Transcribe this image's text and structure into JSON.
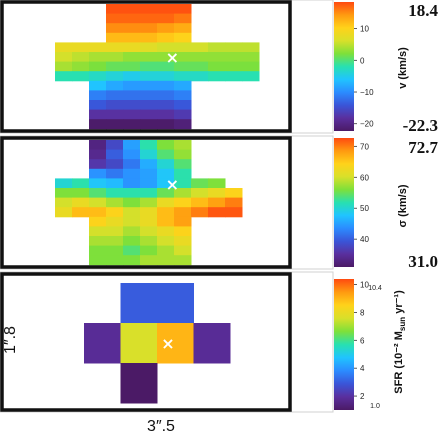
{
  "chart_data": [
    {
      "type": "heatmap",
      "quantity": "velocity",
      "colorbar_label": "v (km/s)",
      "colorbar_ticks": [
        "10",
        "0",
        "−10",
        "−20"
      ],
      "colorbar_tick_values": [
        10,
        0,
        -10,
        -20
      ],
      "vmax_label": "18.4",
      "vmin_label": "-22.3",
      "range": [
        -22.3,
        18.4
      ],
      "center_marker": "×",
      "rows": [
        [
          null,
          null,
          null,
          null,
          null,
          null,
          18,
          18,
          18,
          18,
          18,
          null,
          null,
          null,
          null,
          null,
          null
        ],
        [
          null,
          null,
          null,
          null,
          null,
          null,
          17,
          17,
          17,
          17,
          16,
          null,
          null,
          null,
          null,
          null,
          null
        ],
        [
          null,
          null,
          null,
          null,
          null,
          null,
          15,
          15,
          15,
          14,
          13,
          null,
          null,
          null,
          null,
          null,
          null
        ],
        [
          null,
          null,
          null,
          null,
          null,
          null,
          12,
          12,
          12,
          11,
          10,
          null,
          null,
          null,
          null,
          null,
          null
        ],
        [
          null,
          null,
          null,
          8,
          8,
          8,
          8,
          8,
          7,
          6,
          6,
          6,
          5,
          5,
          5,
          null,
          null
        ],
        [
          null,
          null,
          null,
          6,
          5,
          4,
          4,
          3,
          3,
          3,
          3,
          3,
          3,
          3,
          3,
          null,
          null
        ],
        [
          null,
          null,
          null,
          4,
          3,
          2,
          1,
          1,
          0,
          0,
          1,
          1,
          2,
          2,
          2,
          null,
          null
        ],
        [
          null,
          null,
          null,
          -2,
          -2,
          -3,
          -4,
          -5,
          -4,
          -4,
          -3,
          -3,
          -2,
          -2,
          -2,
          null,
          null
        ],
        [
          null,
          null,
          null,
          null,
          null,
          -6,
          -8,
          -9,
          -9,
          -9,
          -8,
          null,
          null,
          null,
          null,
          null,
          null
        ],
        [
          null,
          null,
          null,
          null,
          null,
          -11,
          -12,
          -12,
          -12,
          -12,
          -11,
          null,
          null,
          null,
          null,
          null,
          null
        ],
        [
          null,
          null,
          null,
          null,
          null,
          -14,
          -15,
          -15,
          -15,
          -15,
          -14,
          null,
          null,
          null,
          null,
          null,
          null
        ],
        [
          null,
          null,
          null,
          null,
          null,
          -18,
          -18,
          -18,
          -18,
          -18,
          -17,
          null,
          null,
          null,
          null,
          null,
          null
        ],
        [
          null,
          null,
          null,
          null,
          null,
          -22,
          -22,
          -22,
          -22,
          -22,
          -21,
          null,
          null,
          null,
          null,
          null,
          null
        ]
      ]
    },
    {
      "type": "heatmap",
      "quantity": "velocity dispersion",
      "colorbar_label": "σ (km/s)",
      "colorbar_ticks": [
        "70",
        "60",
        "50",
        "40"
      ],
      "colorbar_tick_values": [
        70,
        60,
        50,
        40
      ],
      "vmax_label": "72.7",
      "vmin_label": "31.0",
      "range": [
        31.0,
        72.7
      ],
      "center_marker": "×",
      "rows": [
        [
          null,
          null,
          null,
          null,
          null,
          33,
          38,
          45,
          52,
          56,
          58,
          null,
          null,
          null,
          null,
          null,
          null
        ],
        [
          null,
          null,
          null,
          null,
          null,
          34,
          40,
          44,
          50,
          54,
          57,
          null,
          null,
          null,
          null,
          null,
          null
        ],
        [
          null,
          null,
          null,
          null,
          null,
          36,
          38,
          42,
          46,
          50,
          54,
          null,
          null,
          null,
          null,
          null,
          null
        ],
        [
          null,
          null,
          null,
          null,
          null,
          44,
          42,
          44,
          45,
          48,
          52,
          null,
          null,
          null,
          null,
          null,
          null
        ],
        [
          null,
          null,
          null,
          50,
          52,
          48,
          47,
          44,
          45,
          48,
          52,
          55,
          56,
          null,
          null,
          null,
          null
        ],
        [
          null,
          null,
          null,
          56,
          56,
          54,
          52,
          52,
          52,
          55,
          58,
          60,
          62,
          64,
          null,
          null,
          null
        ],
        [
          null,
          null,
          null,
          60,
          62,
          60,
          58,
          56,
          58,
          62,
          64,
          66,
          68,
          70,
          null,
          null,
          null
        ],
        [
          null,
          null,
          null,
          62,
          66,
          66,
          64,
          60,
          62,
          66,
          68,
          70,
          72,
          72,
          null,
          null,
          null
        ],
        [
          null,
          null,
          null,
          null,
          null,
          64,
          62,
          60,
          62,
          66,
          68,
          null,
          null,
          null,
          null,
          null,
          null
        ],
        [
          null,
          null,
          null,
          null,
          null,
          60,
          60,
          58,
          60,
          62,
          64,
          null,
          null,
          null,
          null,
          null,
          null
        ],
        [
          null,
          null,
          null,
          null,
          null,
          58,
          58,
          56,
          58,
          60,
          62,
          null,
          null,
          null,
          null,
          null,
          null
        ],
        [
          null,
          null,
          null,
          null,
          null,
          56,
          56,
          54,
          56,
          58,
          60,
          null,
          null,
          null,
          null,
          null,
          null
        ],
        [
          null,
          null,
          null,
          null,
          null,
          56,
          56,
          56,
          58,
          58,
          58,
          null,
          null,
          null,
          null,
          null,
          null
        ]
      ]
    },
    {
      "type": "heatmap",
      "quantity": "star formation rate",
      "colorbar_label": "SFR (10⁻² M",
      "colorbar_label_sub": "sun",
      "colorbar_label_tail": " yr⁻¹)",
      "colorbar_ticks": [
        "10",
        "8",
        "6",
        "4",
        "2"
      ],
      "colorbar_tick_values": [
        10,
        8,
        6,
        4,
        2
      ],
      "vmax_label": "10.4",
      "vmin_label": "1.0",
      "range": [
        1.0,
        10.4
      ],
      "center_marker": "×",
      "rows": [
        [
          null,
          3.0,
          3.0,
          null
        ],
        [
          1.8,
          7.6,
          9.0,
          1.8
        ],
        [
          null,
          1.0,
          null,
          null
        ]
      ]
    }
  ],
  "scale_bar": {
    "height_label": "1″.8",
    "width_label": "3″.5"
  },
  "colors": {
    "colormap": [
      "#4b1a66",
      "#5a2f9e",
      "#3a55d8",
      "#2b8cff",
      "#20c4ff",
      "#28e0b0",
      "#7ee03a",
      "#d8e02a",
      "#ffd21a",
      "#ff9a10",
      "#ff4a10"
    ],
    "frame": "#111111",
    "marker": "#ffffff"
  }
}
